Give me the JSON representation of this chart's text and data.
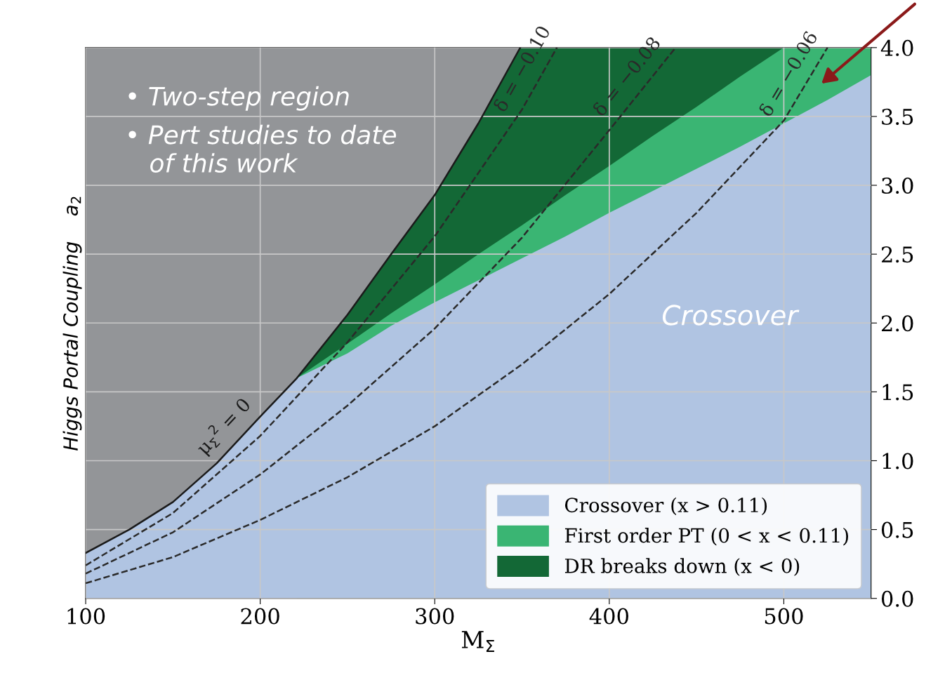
{
  "chart_data": {
    "type": "area",
    "xlabel": "M$_{Σ}$",
    "ylabel": "Higgs Portal Coupling    a$_{2}$",
    "x": [
      100,
      125,
      150,
      175,
      200,
      221,
      250,
      275,
      300,
      325,
      350,
      375,
      400,
      425,
      450,
      475,
      500,
      525,
      550
    ],
    "series": [
      {
        "name": "Crossover (x > 0.11)",
        "color": "#b0c4e2",
        "values": [
          0.33,
          0.5,
          0.7,
          0.98,
          1.32,
          1.6,
          1.78,
          1.98,
          2.15,
          2.31,
          2.47,
          2.63,
          2.8,
          2.96,
          3.12,
          3.28,
          3.45,
          3.62,
          3.8
        ]
      },
      {
        "name": "First order PT (0 < x < 0.11)",
        "color": "#3ab573",
        "x": [
          221,
          250,
          275,
          300,
          325,
          350,
          375,
          400,
          425,
          450,
          475,
          500,
          525,
          550
        ],
        "values": [
          1.6,
          1.85,
          2.07,
          2.28,
          2.5,
          2.71,
          2.93,
          3.14,
          3.36,
          3.57,
          3.79,
          4.0,
          4.0,
          4.0
        ]
      },
      {
        "name": "DR breaks down (x < 0)",
        "color": "#136836",
        "x": [
          221,
          250,
          275,
          300,
          325,
          349,
          375,
          400,
          425,
          450,
          475,
          500
        ],
        "values": [
          1.6,
          2.06,
          2.5,
          2.93,
          3.45,
          4.0,
          4.0,
          4.0,
          4.0,
          4.0,
          4.0,
          4.0
        ]
      },
      {
        "color": "#939598",
        "x": [
          100,
          125,
          150,
          175,
          200,
          221,
          250,
          275,
          300,
          325,
          349
        ],
        "values": [
          4,
          4,
          4,
          4,
          4,
          4,
          4,
          4,
          4,
          4,
          4
        ]
      },
      {
        "type": "line",
        "name": "μ$_{Σ}$$^{2}$ = 0",
        "color": "#1a1a1a",
        "line_style": "solid",
        "x": [
          100,
          125,
          150,
          175,
          200,
          221,
          250,
          275,
          300,
          325,
          349
        ],
        "values": [
          0.33,
          0.5,
          0.7,
          0.98,
          1.32,
          1.6,
          2.06,
          2.5,
          2.93,
          3.45,
          4.0
        ]
      },
      {
        "type": "line",
        "name": "δ = −0.10",
        "color": "#2a2a2a",
        "line_style": "dashed",
        "x": [
          100,
          150,
          200,
          250,
          300,
          350,
          370
        ],
        "values": [
          0.24,
          0.62,
          1.18,
          1.86,
          2.63,
          3.55,
          4.0
        ]
      },
      {
        "type": "line",
        "name": "δ = −0.08",
        "color": "#2a2a2a",
        "line_style": "dashed",
        "x": [
          100,
          150,
          200,
          250,
          300,
          350,
          400,
          438
        ],
        "values": [
          0.18,
          0.48,
          0.9,
          1.4,
          1.96,
          2.62,
          3.4,
          4.0
        ]
      },
      {
        "type": "line",
        "name": "δ = −0.06",
        "color": "#2a2a2a",
        "line_style": "dashed",
        "x": [
          100,
          150,
          200,
          250,
          300,
          350,
          400,
          450,
          500,
          525
        ],
        "values": [
          0.11,
          0.3,
          0.57,
          0.88,
          1.25,
          1.7,
          2.21,
          2.8,
          3.47,
          4.0
        ]
      }
    ],
    "xlim": [
      100,
      550
    ],
    "xticks": [
      100,
      200,
      300,
      400,
      500
    ],
    "ylim": [
      0,
      4
    ],
    "yticks": [
      {
        "value": 0,
        "label": "0.0"
      },
      {
        "value": 0.5,
        "label": "0.5"
      },
      {
        "value": 1,
        "label": "1.0"
      },
      {
        "value": 1.5,
        "label": "1.5"
      },
      {
        "value": 2,
        "label": "2.0"
      },
      {
        "value": 2.5,
        "label": "2.5"
      },
      {
        "value": 3,
        "label": "3.0"
      },
      {
        "value": 3.5,
        "label": "3.5"
      },
      {
        "value": 4,
        "label": "4.0"
      }
    ],
    "grid": true,
    "legend": "bottom right",
    "annotations": [
      "• Two-step region",
      "• Pert studies to date\n   of this work",
      "Crossover"
    ]
  }
}
